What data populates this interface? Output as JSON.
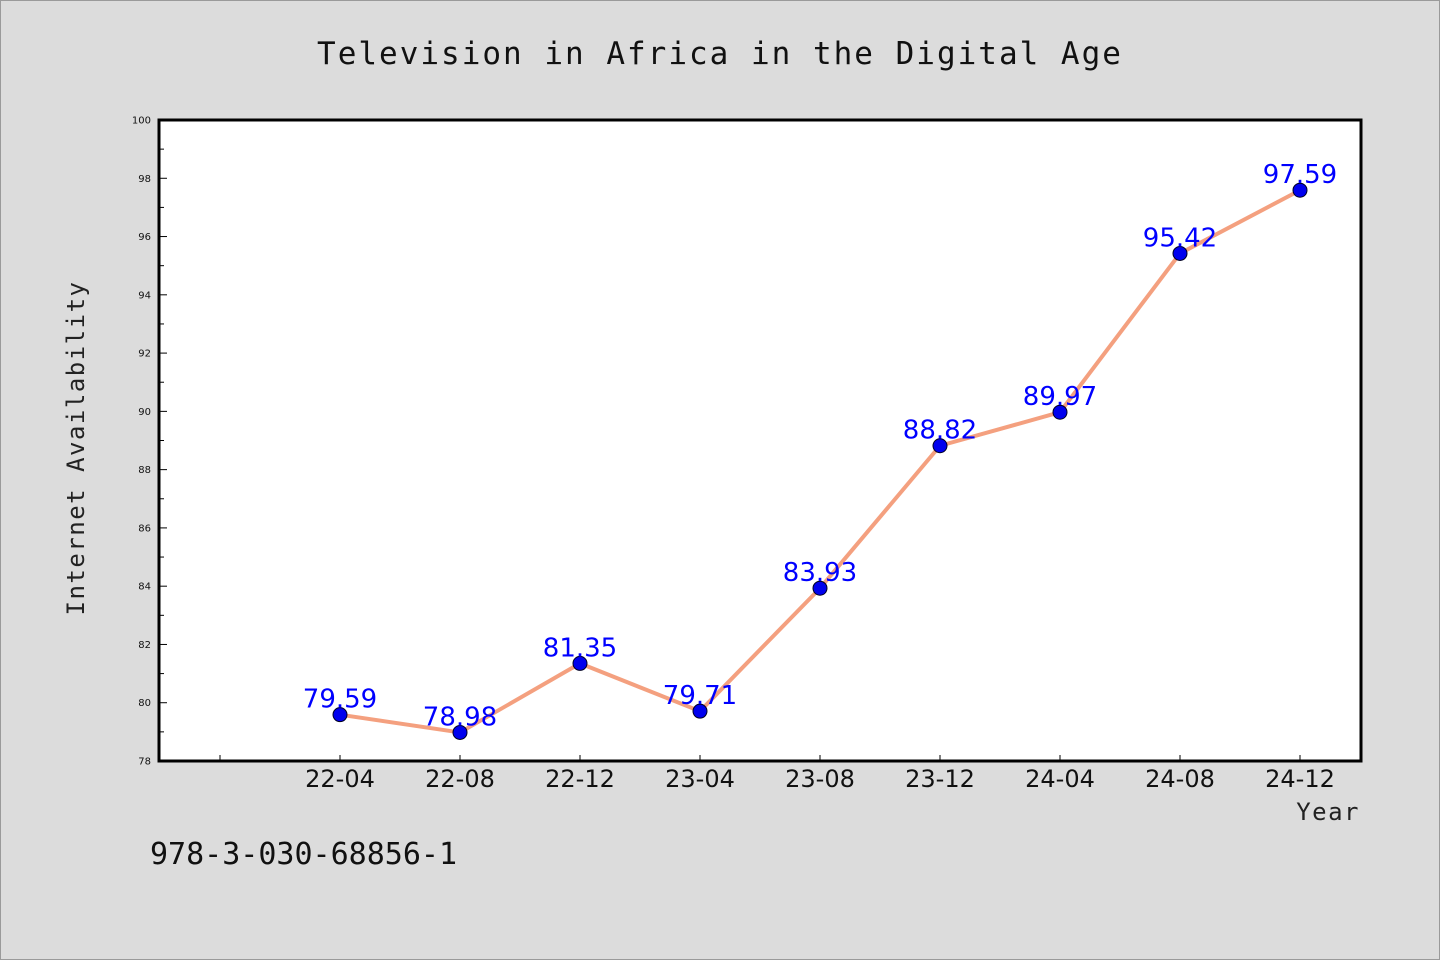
{
  "chart_data": {
    "type": "line",
    "title": "Television in Africa in the Digital Age",
    "xlabel": "Year",
    "ylabel": "Internet Availability",
    "categories": [
      "22-04",
      "22-08",
      "22-12",
      "23-04",
      "23-08",
      "23-12",
      "24-04",
      "24-08",
      "24-12"
    ],
    "series": [
      {
        "values": [
          79.59,
          78.98,
          81.35,
          79.71,
          83.93,
          88.82,
          89.97,
          95.42,
          97.59
        ],
        "line_color": "#f4a07f",
        "marker_color": "#0000ee",
        "label_color": "#0000ff"
      }
    ],
    "data_labels": [
      "79.59",
      "78.98",
      "81.35",
      "79.71",
      "83.93",
      "88.82",
      "89.97",
      "95.42",
      "97.59"
    ],
    "ylim": [
      78,
      100
    ],
    "yticks": [
      "78",
      "80",
      "82",
      "84",
      "86",
      "88",
      "90",
      "92",
      "94",
      "96",
      "98",
      "100"
    ],
    "grid": false,
    "legend": "none"
  },
  "footnote": "978-3-030-68856-1"
}
